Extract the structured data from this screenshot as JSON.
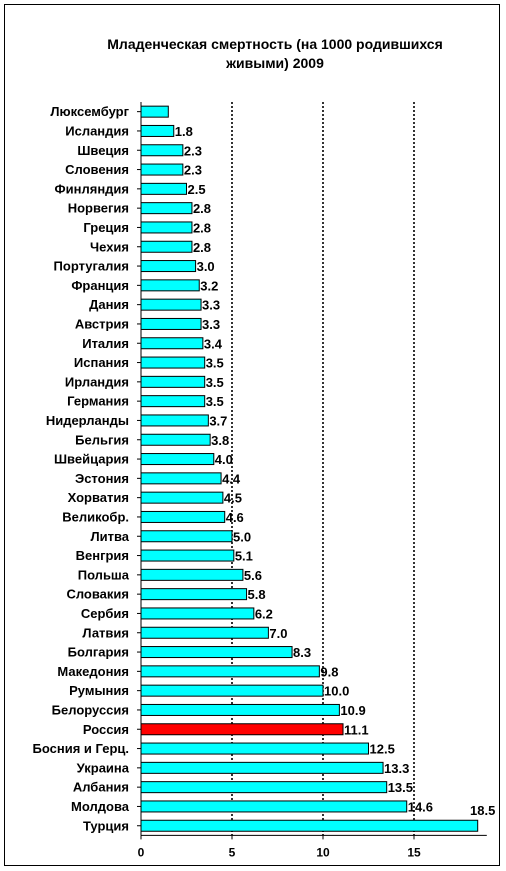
{
  "chart_data": {
    "type": "bar",
    "orientation": "horizontal",
    "title_line1": "Младенческая смертность (на 1000 родившихся",
    "title_line2": "живыми)  2009",
    "categories": [
      "Люксембург",
      "Исландия",
      "Швеция",
      "Словения",
      "Финляндия",
      "Норвегия",
      "Греция",
      "Чехия",
      "Португалия",
      "Франция",
      "Дания",
      "Австрия",
      "Италия",
      "Испания",
      "Ирландия",
      "Германия",
      "Нидерланды",
      "Бельгия",
      "Швейцария",
      "Эстония",
      "Хорватия",
      "Великобр.",
      "Литва",
      "Венгрия",
      "Польша",
      "Словакия",
      "Сербия",
      "Латвия",
      "Болгария",
      "Македония",
      "Румыния",
      "Белоруссия",
      "Россия",
      "Босния и Герц.",
      "Украина",
      "Албания",
      "Молдова",
      "Турция"
    ],
    "values": [
      1.5,
      1.8,
      2.3,
      2.3,
      2.5,
      2.8,
      2.8,
      2.8,
      3.0,
      3.2,
      3.3,
      3.3,
      3.4,
      3.5,
      3.5,
      3.5,
      3.7,
      3.8,
      4.0,
      4.4,
      4.5,
      4.6,
      5.0,
      5.1,
      5.6,
      5.8,
      6.2,
      7.0,
      8.3,
      9.8,
      10.0,
      10.9,
      11.1,
      12.5,
      13.3,
      13.5,
      14.6,
      18.5
    ],
    "value_labels": [
      "",
      "1.8",
      "2.3",
      "2.3",
      "2.5",
      "2.8",
      "2.8",
      "2.8",
      "3.0",
      "3.2",
      "3.3",
      "3.3",
      "3.4",
      "3.5",
      "3.5",
      "3.5",
      "3.7",
      "3.8",
      "4.0",
      "4.4",
      "4.5",
      "4.6",
      "5.0",
      "5.1",
      "5.6",
      "5.8",
      "6.2",
      "7.0",
      "8.3",
      "9.8",
      "10.0",
      "10.9",
      "11.1",
      "12.5",
      "13.3",
      "13.5",
      "14.6",
      "18.5"
    ],
    "highlight_category": "Россия",
    "xlim": [
      0,
      19
    ],
    "xticks": [
      0,
      5,
      10,
      15
    ],
    "xtick_labels": [
      "0",
      "5",
      "10",
      "15"
    ],
    "gridlines": [
      5,
      10,
      15
    ],
    "grid_style": "dotted",
    "colors": {
      "bar": "#00FFFF",
      "highlight": "#FF0000",
      "bar_border": "#000000"
    }
  }
}
